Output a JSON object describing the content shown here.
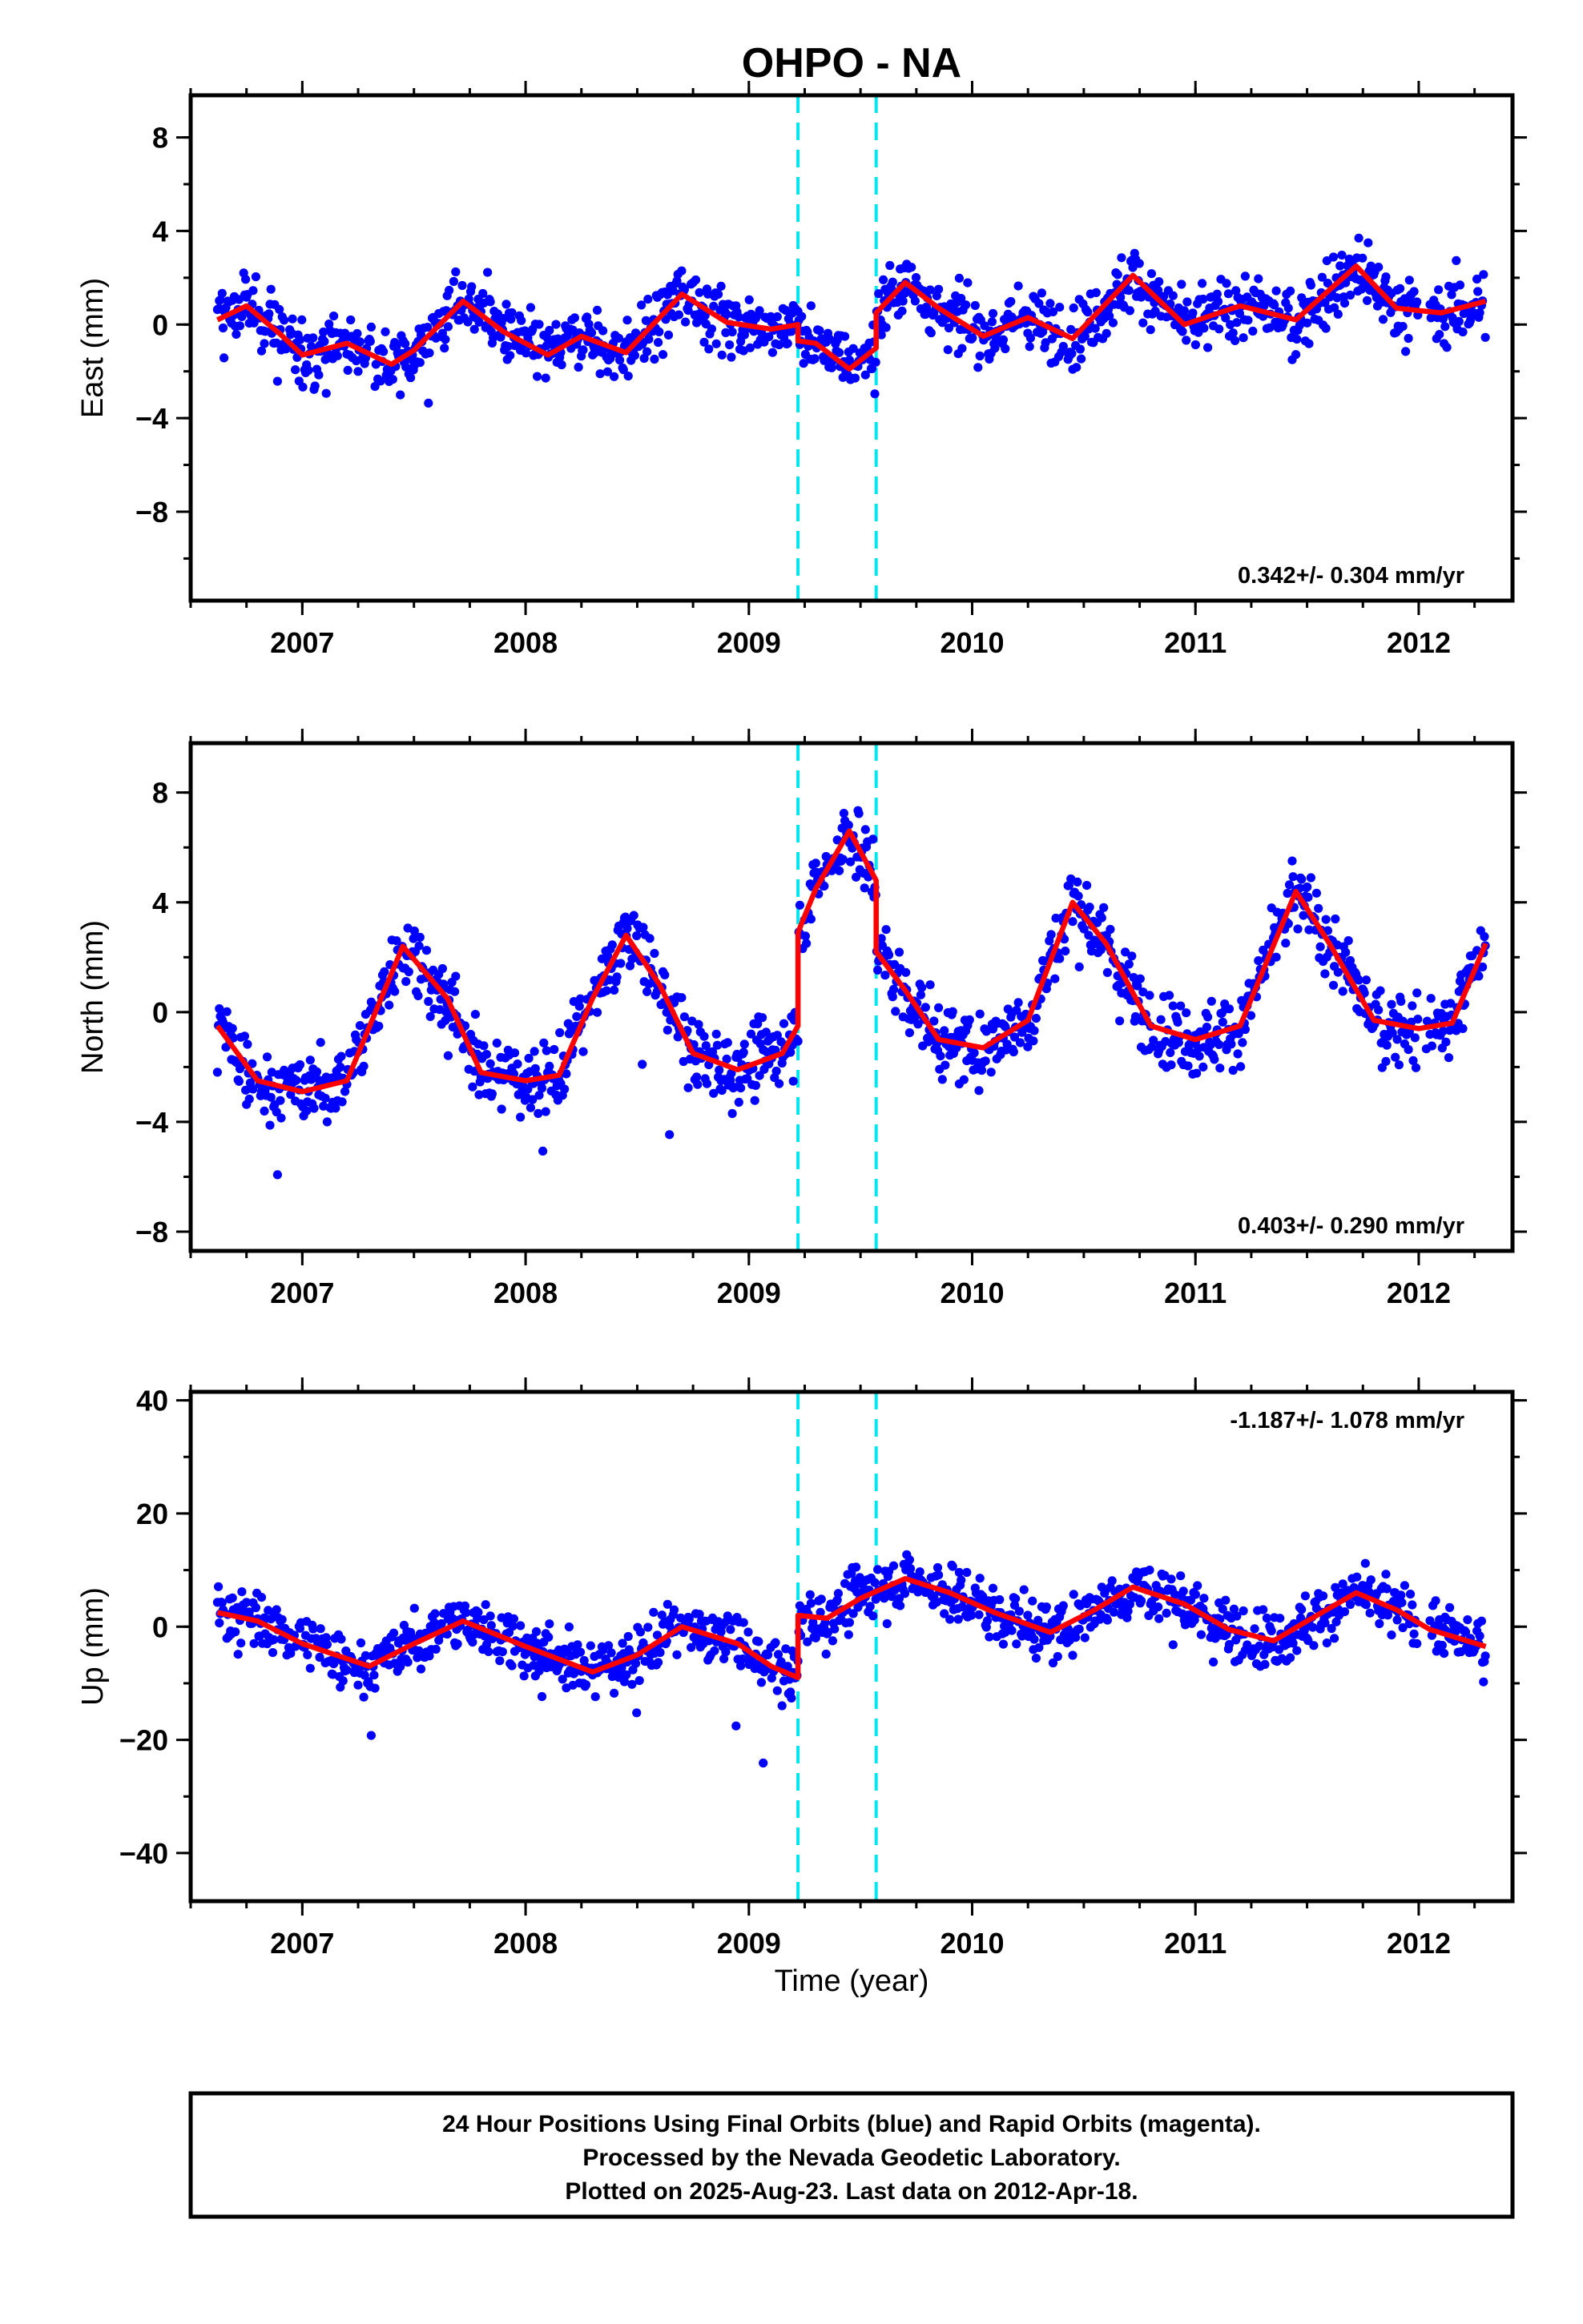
{
  "chart_data": {
    "type": "scatter",
    "title": "OHPO - NA",
    "xlabel": "Time (year)",
    "xlim": [
      2006.5,
      2012.42
    ],
    "x_ticks": [
      "2007",
      "2008",
      "2009",
      "2010",
      "2011",
      "2012"
    ],
    "x_tick_values": [
      2007,
      2008,
      2009,
      2010,
      2011,
      2012
    ],
    "offset_lines_years": [
      2009.22,
      2009.57
    ],
    "offset_line_color": "#00e5ee",
    "data_color": "#0000ff",
    "model_color": "#ff0000",
    "grid": false,
    "date_range": [
      "2006.62",
      "2012.30"
    ],
    "panels": [
      {
        "ylabel": "East (mm)",
        "ylim": [
          -11.8,
          9.8
        ],
        "y_ticks": [
          "8",
          "4",
          "0",
          "−4",
          "−8"
        ],
        "y_tick_values": [
          8,
          4,
          0,
          -4,
          -8
        ],
        "rate_text": "0.342+/- 0.304 mm/yr",
        "rate_position": "bottom-right",
        "model": {
          "x": [
            2006.62,
            2006.75,
            2006.9,
            2007.0,
            2007.2,
            2007.4,
            2007.5,
            2007.72,
            2007.9,
            2008.1,
            2008.25,
            2008.45,
            2008.7,
            2008.9,
            2009.1,
            2009.22,
            2009.22,
            2009.3,
            2009.45,
            2009.57,
            2009.57,
            2009.7,
            2009.85,
            2010.05,
            2010.25,
            2010.45,
            2010.72,
            2010.95,
            2011.2,
            2011.45,
            2011.72,
            2011.9,
            2012.1,
            2012.3
          ],
          "y": [
            0.2,
            0.8,
            -0.4,
            -1.3,
            -0.8,
            -1.7,
            -1.1,
            1.0,
            -0.3,
            -1.3,
            -0.5,
            -1.2,
            1.3,
            0.1,
            -0.2,
            0.0,
            -0.7,
            -0.8,
            -1.9,
            -1.0,
            0.5,
            1.8,
            0.7,
            -0.5,
            0.3,
            -0.6,
            2.1,
            0.0,
            0.8,
            0.2,
            2.5,
            0.7,
            0.5,
            1.0
          ]
        }
      },
      {
        "ylabel": "North (mm)",
        "ylim": [
          -8.7,
          9.8
        ],
        "y_ticks": [
          "8",
          "4",
          "0",
          "−4",
          "−8"
        ],
        "y_tick_values": [
          8,
          4,
          0,
          -4,
          -8
        ],
        "rate_text": "0.403+/- 0.290 mm/yr",
        "rate_position": "bottom-right",
        "model": {
          "x": [
            2006.62,
            2006.8,
            2007.0,
            2007.2,
            2007.45,
            2007.65,
            2007.8,
            2008.0,
            2008.15,
            2008.3,
            2008.45,
            2008.6,
            2008.75,
            2008.95,
            2009.15,
            2009.22,
            2009.22,
            2009.3,
            2009.45,
            2009.57,
            2009.57,
            2009.7,
            2009.85,
            2010.05,
            2010.25,
            2010.45,
            2010.6,
            2010.8,
            2011.0,
            2011.2,
            2011.45,
            2011.6,
            2011.8,
            2012.0,
            2012.15,
            2012.3
          ],
          "y": [
            -0.5,
            -2.5,
            -2.9,
            -2.5,
            2.4,
            0.5,
            -2.2,
            -2.5,
            -2.3,
            0.5,
            2.8,
            1.0,
            -1.5,
            -2.1,
            -1.5,
            -0.5,
            2.9,
            4.5,
            6.6,
            4.8,
            2.2,
            0.8,
            -1.0,
            -1.3,
            -0.3,
            4.0,
            2.5,
            -0.5,
            -1.0,
            -0.5,
            4.4,
            2.5,
            -0.3,
            -0.6,
            -0.4,
            2.5
          ]
        }
      },
      {
        "ylabel": "Up (mm)",
        "ylim": [
          -48.5,
          41.5
        ],
        "y_ticks": [
          "40",
          "20",
          "0",
          "−20",
          "−40"
        ],
        "y_tick_values": [
          40,
          20,
          0,
          -20,
          -40
        ],
        "rate_text": "-1.187+/- 1.078 mm/yr",
        "rate_position": "top-right",
        "model": {
          "x": [
            2006.62,
            2006.8,
            2007.0,
            2007.3,
            2007.5,
            2007.72,
            2008.0,
            2008.3,
            2008.5,
            2008.7,
            2008.95,
            2009.1,
            2009.22,
            2009.22,
            2009.35,
            2009.5,
            2009.7,
            2009.9,
            2010.1,
            2010.35,
            2010.55,
            2010.72,
            2010.95,
            2011.15,
            2011.35,
            2011.5,
            2011.72,
            2011.9,
            2012.05,
            2012.3
          ],
          "y": [
            2.5,
            1.0,
            -3.0,
            -7.0,
            -3.0,
            1.0,
            -3.5,
            -8.0,
            -5.0,
            0.0,
            -3.0,
            -7.0,
            -9.0,
            2.0,
            1.5,
            5.0,
            8.5,
            6.0,
            2.5,
            -1.0,
            3.0,
            7.0,
            4.0,
            -0.5,
            -2.5,
            1.0,
            6.0,
            3.0,
            -0.5,
            -3.5
          ]
        }
      }
    ]
  },
  "footer": {
    "line1": "24 Hour Positions Using Final Orbits (blue) and Rapid Orbits (magenta).",
    "line2": "Processed by the Nevada Geodetic Laboratory.",
    "line3": "Plotted on 2025-Aug-23. Last data on 2012-Apr-18."
  }
}
